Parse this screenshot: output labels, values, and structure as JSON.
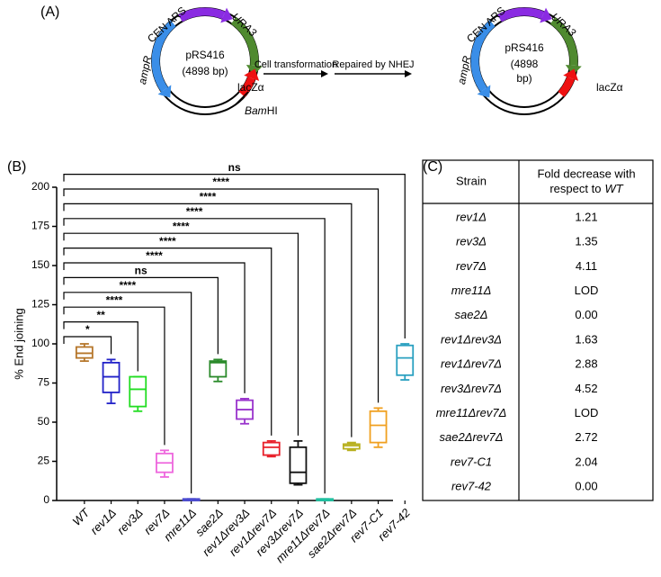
{
  "panels": [
    "(A)",
    "(B)",
    "(C)"
  ],
  "diagram": {
    "before": {
      "name": "pRS416",
      "size": [
        "(4898 bp)"
      ],
      "genes": {
        "cen_ars": "CEN ARS",
        "ura3": "URA3",
        "ampr": "ampR",
        "lacz": "lacZα"
      },
      "site": {
        "italic": "Bam",
        "plain": "HI"
      }
    },
    "steps": [
      "Cell transformation",
      "Repaired by NHEJ"
    ],
    "after": {
      "name": "pRS416",
      "size": [
        "(4898",
        "bp)"
      ],
      "genes": {
        "cen_ars": "CEN ARS",
        "ura3": "URA3",
        "ampr": "ampR",
        "lacz": "lacZα"
      }
    }
  },
  "chart_data": {
    "type": "box",
    "y_label": "% End joining",
    "categories": [
      "WT",
      "rev1Δ",
      "rev3Δ",
      "rev7Δ",
      "mre11Δ",
      "sae2Δ",
      "rev1Δrev3Δ",
      "rev1Δrev7Δ",
      "rev3Δrev7Δ",
      "mre11Δrev7Δ",
      "sae2Δrev7Δ",
      "rev7-C1",
      "rev7-42"
    ],
    "colors": [
      "#b5762a",
      "#2222c8",
      "#22dd22",
      "#ee66dd",
      "#4a4ad0",
      "#2a8a2a",
      "#9933cc",
      "#e8202a",
      "#111111",
      "#20c0a0",
      "#b8b020",
      "#f0a020",
      "#2aa0c0"
    ],
    "min": [
      89,
      62,
      57,
      15,
      0,
      76,
      49,
      28,
      10,
      0,
      32,
      34,
      77
    ],
    "q1": [
      91,
      69,
      60,
      18,
      0,
      79,
      52,
      29,
      11,
      0,
      33,
      37,
      80
    ],
    "median": [
      94,
      79,
      71,
      24,
      0.5,
      88,
      58,
      34,
      18,
      0.5,
      35,
      48,
      91
    ],
    "q3": [
      98,
      88,
      79,
      30,
      1,
      89,
      64,
      37,
      34,
      1,
      36,
      57,
      99
    ],
    "max": [
      100,
      90,
      79,
      32,
      1,
      90,
      65,
      38,
      38,
      1,
      37,
      59,
      100
    ],
    "significance": [
      null,
      "*",
      "**",
      "****",
      "****",
      "ns",
      "****",
      "****",
      "****",
      "****",
      "****",
      "****",
      "ns"
    ],
    "ylim": [
      0,
      200
    ],
    "yticks": [
      0,
      25,
      50,
      75,
      100,
      125,
      150,
      175,
      200
    ]
  },
  "table": {
    "header": {
      "strain": "Strain",
      "fold": [
        "Fold decrease with",
        "respect to",
        "WT"
      ]
    },
    "rows": [
      [
        "rev1Δ",
        "1.21"
      ],
      [
        "rev3Δ",
        "1.35"
      ],
      [
        "rev7Δ",
        "4.11"
      ],
      [
        "mre11Δ",
        "LOD"
      ],
      [
        "sae2Δ",
        "0.00"
      ],
      [
        "rev1Δrev3Δ",
        "1.63"
      ],
      [
        "rev1Δrev7Δ",
        "2.88"
      ],
      [
        "rev3Δrev7Δ",
        "4.52"
      ],
      [
        "mre11Δrev7Δ",
        "LOD"
      ],
      [
        "sae2Δrev7Δ",
        "2.72"
      ],
      [
        "rev7-C1",
        "2.04"
      ],
      [
        "rev7-42",
        "0.00"
      ]
    ]
  }
}
